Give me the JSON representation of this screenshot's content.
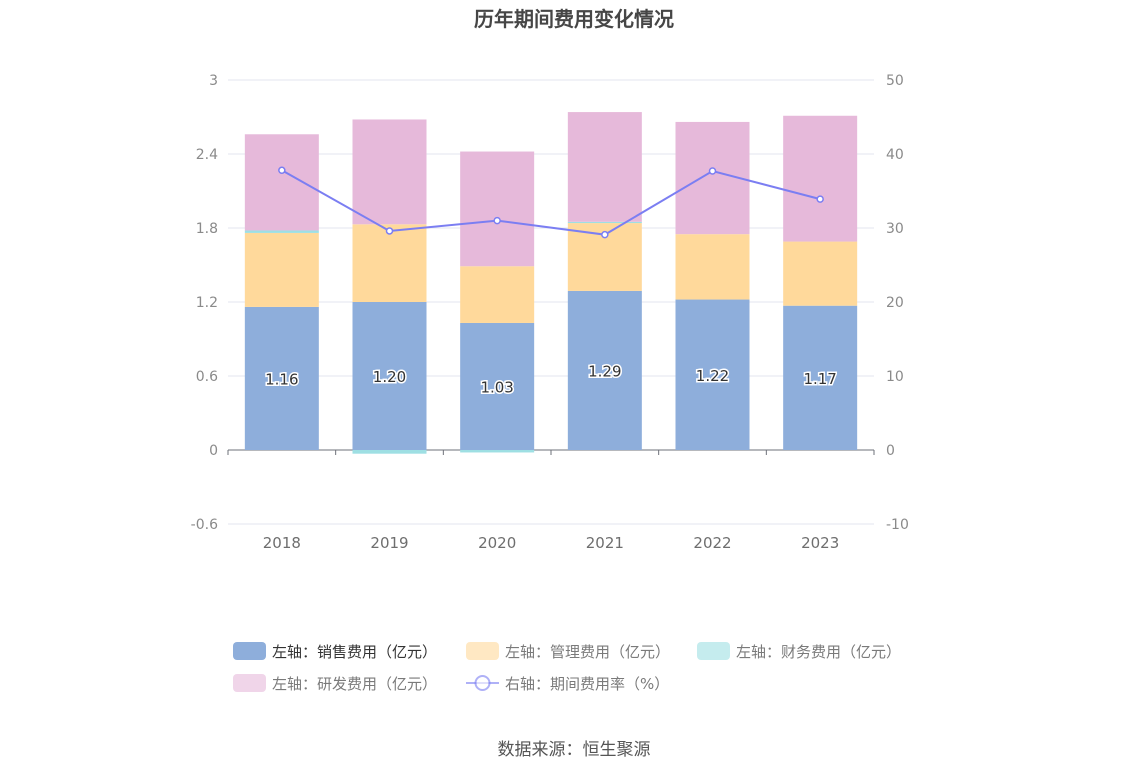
{
  "chart_data": {
    "type": "bar",
    "title": "历年期间费用变化情况",
    "categories": [
      "2018",
      "2019",
      "2020",
      "2021",
      "2022",
      "2023"
    ],
    "left_axis": {
      "ylim": [
        -0.6,
        3
      ],
      "ticks": [
        "-0.6",
        "0",
        "0.6",
        "1.2",
        "1.8",
        "2.4",
        "3"
      ]
    },
    "right_axis": {
      "ylim": [
        -10,
        50
      ],
      "ticks": [
        "-10",
        "0",
        "10",
        "20",
        "30",
        "40",
        "50"
      ]
    },
    "stacked": true,
    "series": [
      {
        "name": "左轴：销售费用（亿元）",
        "type": "bar",
        "axis": "left",
        "color": "#8eaedb",
        "values": [
          1.16,
          1.2,
          1.03,
          1.29,
          1.22,
          1.17
        ],
        "labels": [
          "1.16",
          "1.20",
          "1.03",
          "1.29",
          "1.22",
          "1.17"
        ]
      },
      {
        "name": "左轴：管理费用（亿元）",
        "type": "bar",
        "axis": "left",
        "color": "#ffd99b",
        "values": [
          0.6,
          0.63,
          0.46,
          0.55,
          0.53,
          0.52
        ]
      },
      {
        "name": "左轴：财务费用（亿元）",
        "type": "bar",
        "axis": "left",
        "color": "#9edfe3",
        "values": [
          0.02,
          -0.03,
          -0.02,
          0.01,
          0.0,
          0.0
        ]
      },
      {
        "name": "左轴：研发费用（亿元）",
        "type": "bar",
        "axis": "left",
        "color": "#e6b9da",
        "values": [
          0.78,
          0.85,
          0.93,
          0.89,
          0.91,
          1.02
        ]
      },
      {
        "name": "右轴：期间费用率（%）",
        "type": "line",
        "axis": "right",
        "color": "#7b7ef2",
        "values": [
          37.8,
          29.6,
          31.0,
          29.1,
          37.7,
          33.9
        ]
      }
    ],
    "legend_position": "bottom",
    "grid": true
  },
  "footer": {
    "source": "数据来源：恒生聚源"
  }
}
